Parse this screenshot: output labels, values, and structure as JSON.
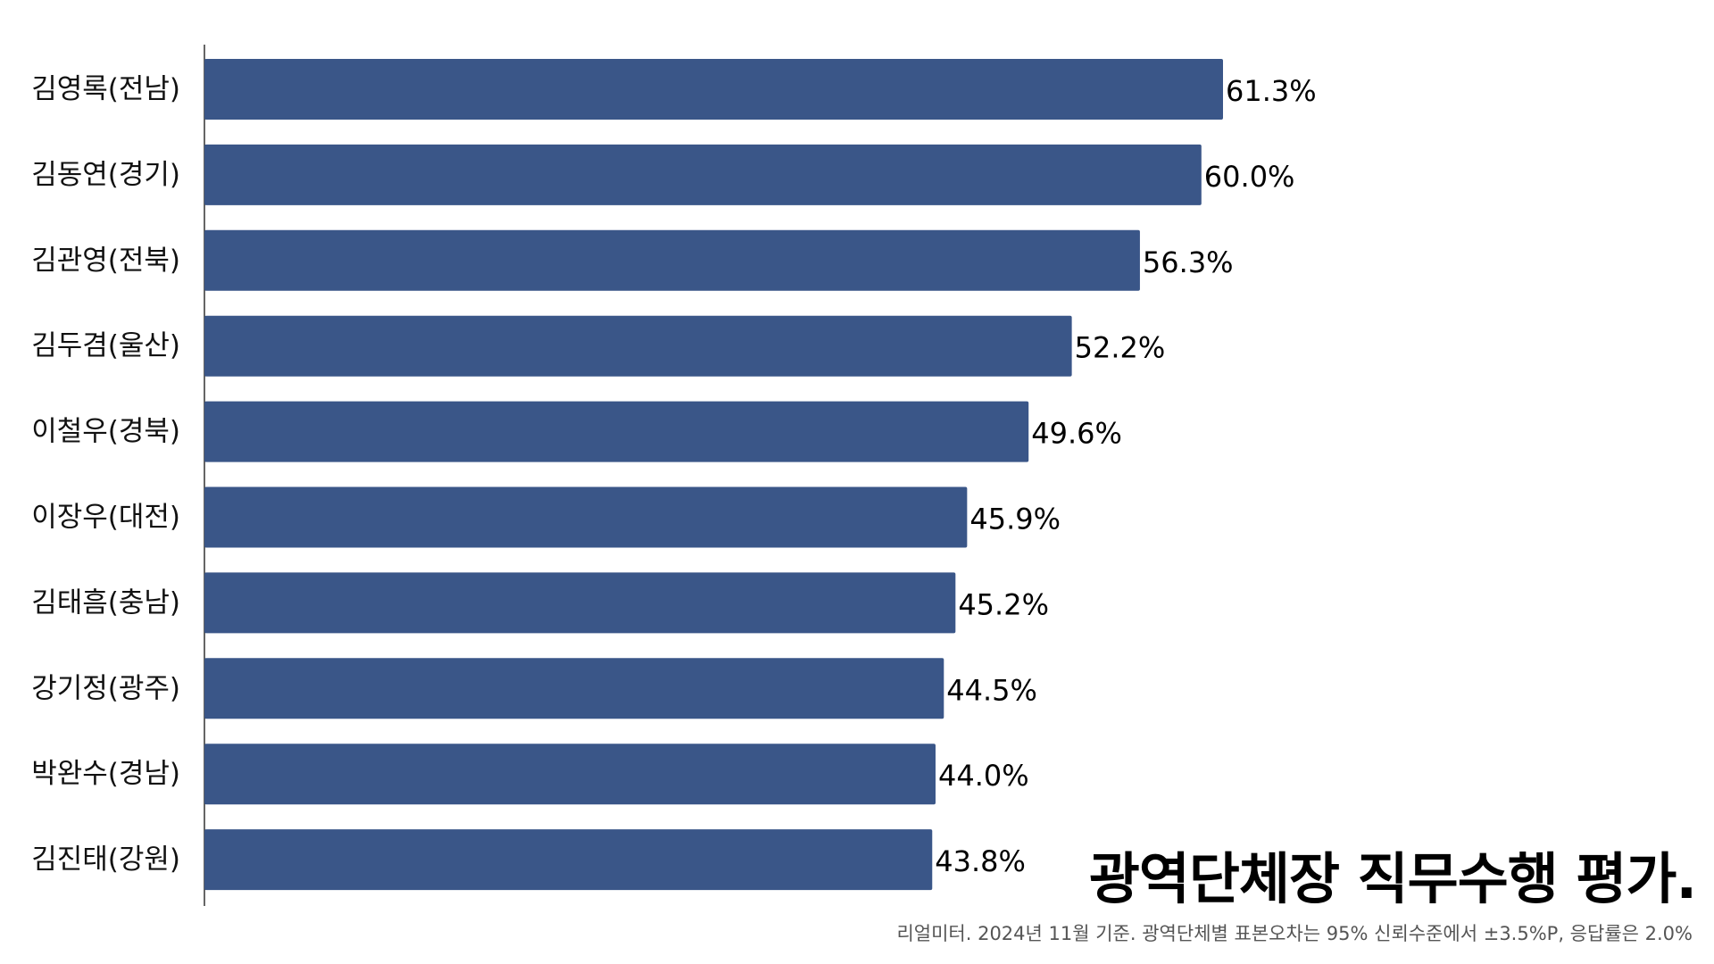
{
  "chart_data": {
    "type": "bar",
    "orientation": "horizontal",
    "categories": [
      "김영록(전남)",
      "김동연(경기)",
      "김관영(전북)",
      "김두겸(울산)",
      "이철우(경북)",
      "이장우(대전)",
      "김태흠(충남)",
      "강기정(광주)",
      "박완수(경남)",
      "김진태(강원)"
    ],
    "values": [
      61.3,
      60.0,
      56.3,
      52.2,
      49.6,
      45.9,
      45.2,
      44.5,
      44.0,
      43.8
    ],
    "data_labels": [
      "61.3%",
      "60.0%",
      "56.3%",
      "52.2%",
      "49.6%",
      "45.9%",
      "45.2%",
      "44.5%",
      "44.0%",
      "43.8%"
    ],
    "title": "광역단체장 직무수행 평가.",
    "note": "리얼미터. 2024년 11월 기준. 광역단체별 표본오차는 95% 신뢰수준에서 ±3.5%P, 응답률은 2.0%",
    "xlabel": "",
    "ylabel": "",
    "xlim": [
      0,
      100
    ],
    "grid": false,
    "legend": "none",
    "colors": {
      "bar": "#3a5688",
      "axis": "#333333",
      "text": "#111111",
      "note": "#555555"
    }
  }
}
